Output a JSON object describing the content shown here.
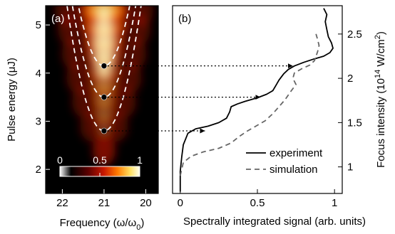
{
  "chart_data": [
    {
      "type": "heatmap",
      "panel_label": "(a)",
      "xlabel": "Frequency (ω/ω",
      "xlabel_sub": "0",
      "xlabel_end": ")",
      "ylabel": "Pulse energy (μJ)",
      "xlim": [
        22.4,
        19.7
      ],
      "ylim": [
        1.5,
        5.4
      ],
      "x_ticks": [
        22,
        21,
        20
      ],
      "y_ticks": [
        2,
        3,
        4,
        5
      ],
      "colorbar": {
        "ticks": [
          "0",
          "0.5",
          "1"
        ],
        "range": [
          0,
          1
        ],
        "colors": [
          "#ffffff",
          "#000000",
          "#5a0000",
          "#c81800",
          "#ff7a00",
          "#ffe060",
          "#fffff0"
        ]
      },
      "parabolas": [
        {
          "vertex_x": 21.0,
          "vertex_y": 2.8,
          "curvature": 3.3
        },
        {
          "vertex_x": 21.0,
          "vertex_y": 3.5,
          "curvature": 3.3
        },
        {
          "vertex_x": 21.0,
          "vertex_y": 4.15,
          "curvature": 3.3
        }
      ],
      "markers": [
        {
          "x": 21.0,
          "y": 2.8
        },
        {
          "x": 21.0,
          "y": 3.5
        },
        {
          "x": 21.0,
          "y": 4.15
        }
      ]
    },
    {
      "type": "line",
      "panel_label": "(b)",
      "xlabel": "Spectrally integrated signal (arb. units)",
      "ylabel": "Focus intensity (10",
      "ylabel_sup": "14",
      "ylabel_end": " W/cm",
      "ylabel_sup2": "2",
      "ylabel_close": ")",
      "xlim": [
        -0.05,
        1.05
      ],
      "ylim": [
        0.7,
        2.82
      ],
      "x_ticks": [
        "0",
        "0.5",
        "1"
      ],
      "y_ticks": [
        "1",
        "1.5",
        "2",
        "2.5"
      ],
      "legend_position": "bottom-right",
      "series": [
        {
          "name": "experiment",
          "style": "solid",
          "color": "#000000",
          "points": [
            [
              0.0,
              0.72
            ],
            [
              0.0,
              0.95
            ],
            [
              0.01,
              1.12
            ],
            [
              0.02,
              1.25
            ],
            [
              0.05,
              1.38
            ],
            [
              0.1,
              1.43
            ],
            [
              0.18,
              1.46
            ],
            [
              0.25,
              1.5
            ],
            [
              0.3,
              1.55
            ],
            [
              0.32,
              1.62
            ],
            [
              0.33,
              1.68
            ],
            [
              0.37,
              1.71
            ],
            [
              0.42,
              1.74
            ],
            [
              0.5,
              1.78
            ],
            [
              0.56,
              1.82
            ],
            [
              0.6,
              1.86
            ],
            [
              0.62,
              1.92
            ],
            [
              0.64,
              1.98
            ],
            [
              0.67,
              2.05
            ],
            [
              0.7,
              2.1
            ],
            [
              0.74,
              2.14
            ],
            [
              0.8,
              2.18
            ],
            [
              0.87,
              2.22
            ],
            [
              0.93,
              2.25
            ],
            [
              0.97,
              2.29
            ],
            [
              0.99,
              2.34
            ],
            [
              0.98,
              2.4
            ],
            [
              0.96,
              2.47
            ],
            [
              0.95,
              2.55
            ],
            [
              0.94,
              2.64
            ],
            [
              0.95,
              2.72
            ],
            [
              0.93,
              2.79
            ]
          ]
        },
        {
          "name": "simulation",
          "style": "dashed",
          "color": "#666666",
          "points": [
            [
              0.0,
              0.9
            ],
            [
              0.02,
              1.05
            ],
            [
              0.07,
              1.12
            ],
            [
              0.15,
              1.17
            ],
            [
              0.25,
              1.21
            ],
            [
              0.33,
              1.27
            ],
            [
              0.38,
              1.34
            ],
            [
              0.43,
              1.4
            ],
            [
              0.48,
              1.45
            ],
            [
              0.55,
              1.52
            ],
            [
              0.6,
              1.6
            ],
            [
              0.64,
              1.68
            ],
            [
              0.68,
              1.76
            ],
            [
              0.72,
              1.86
            ],
            [
              0.75,
              1.93
            ],
            [
              0.73,
              2.0
            ],
            [
              0.74,
              2.06
            ],
            [
              0.79,
              2.11
            ],
            [
              0.84,
              2.15
            ],
            [
              0.87,
              2.2
            ],
            [
              0.88,
              2.25
            ],
            [
              0.89,
              2.3
            ],
            [
              0.9,
              2.37
            ],
            [
              0.89,
              2.44
            ],
            [
              0.88,
              2.5
            ]
          ]
        }
      ]
    }
  ]
}
